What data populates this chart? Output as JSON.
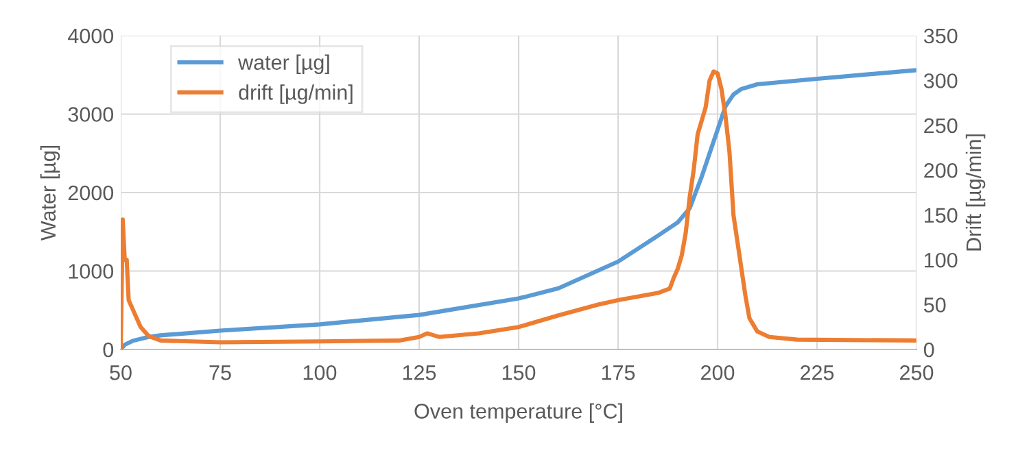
{
  "chart_data": {
    "type": "line",
    "xlabel": "Oven temperature [°C]",
    "ylabel": "Water [µg]",
    "y2label": "Drift [µg/min]",
    "xlim": [
      50,
      250
    ],
    "xticks": [
      50,
      75,
      100,
      125,
      150,
      175,
      200,
      225,
      250
    ],
    "ylim": [
      0,
      4000
    ],
    "yticks": [
      0,
      1000,
      2000,
      3000,
      4000
    ],
    "y2lim": [
      0,
      350
    ],
    "y2ticks": [
      0,
      50,
      100,
      150,
      200,
      250,
      300,
      350
    ],
    "grid": true,
    "legend": "top left",
    "marker": "none",
    "line_style": "solid",
    "series": [
      {
        "name": "water [µg]",
        "color": "#5b9bd5",
        "x": [
          50,
          51,
          53,
          57,
          60,
          75,
          100,
          125,
          150,
          160,
          175,
          185,
          190,
          193,
          196,
          198,
          200,
          202,
          204,
          206,
          210,
          225,
          250
        ],
        "values": [
          0,
          60,
          110,
          160,
          180,
          240,
          320,
          440,
          650,
          780,
          1120,
          1450,
          1620,
          1800,
          2200,
          2500,
          2800,
          3100,
          3250,
          3320,
          3380,
          3450,
          3560
        ]
      },
      {
        "name": "drift [µg/min]",
        "color": "#ed7d31",
        "axis": "y2",
        "x": [
          50,
          50.5,
          51,
          51.5,
          52,
          53,
          55,
          57,
          60,
          75,
          100,
          120,
          125,
          127,
          130,
          140,
          150,
          160,
          170,
          175,
          185,
          188,
          189,
          190,
          191,
          192,
          193,
          194,
          195,
          196,
          197,
          198,
          199,
          200,
          201,
          202,
          203,
          204,
          205,
          206,
          207,
          208,
          210,
          213,
          220,
          250
        ],
        "values": [
          0,
          145,
          100,
          100,
          55,
          45,
          25,
          15,
          10,
          8,
          9,
          10,
          14,
          18,
          14,
          18,
          25,
          38,
          50,
          55,
          63,
          68,
          80,
          90,
          105,
          130,
          170,
          200,
          240,
          255,
          270,
          300,
          310,
          308,
          290,
          260,
          220,
          150,
          120,
          90,
          60,
          35,
          20,
          14,
          11,
          10
        ]
      }
    ]
  }
}
